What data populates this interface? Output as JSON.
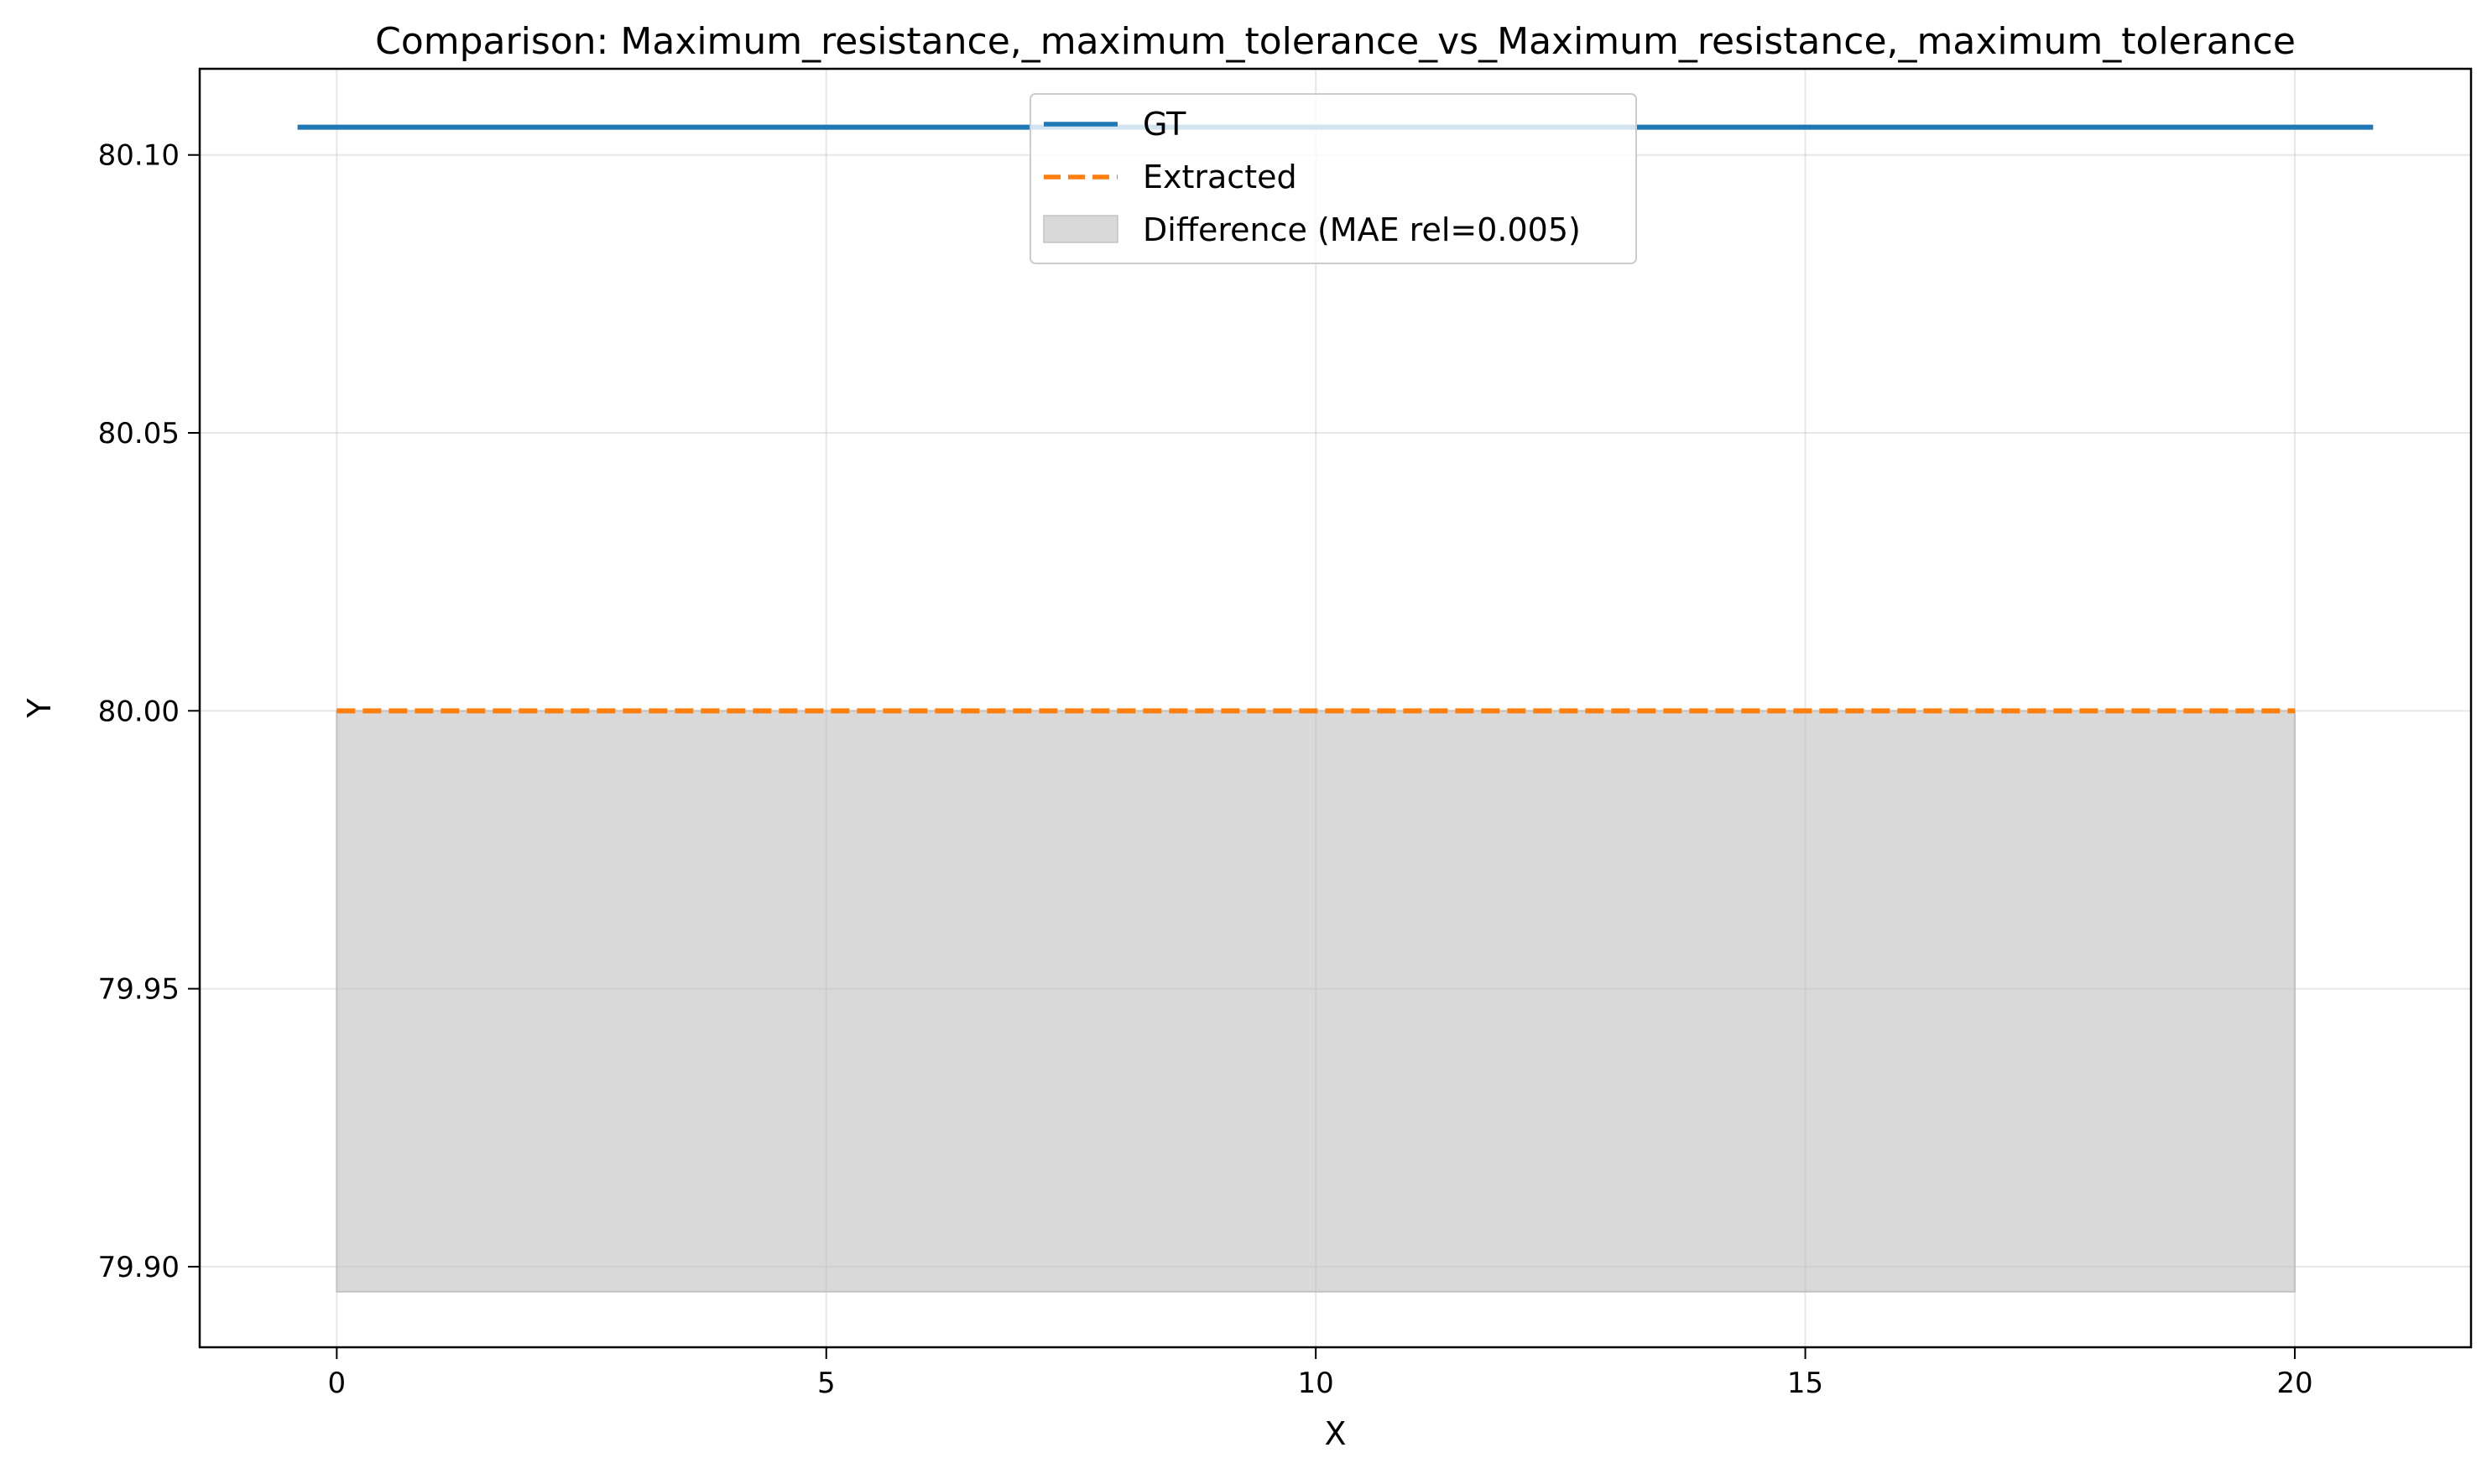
{
  "chart_data": {
    "type": "line",
    "title": "Comparison: Maximum_resistance,_maximum_tolerance_vs_Maximum_resistance,_maximum_tolerance",
    "xlabel": "X",
    "ylabel": "Y",
    "xlim": [
      -1.4,
      21.8
    ],
    "ylim": [
      79.8855,
      80.1155
    ],
    "x_ticks": [
      0,
      5,
      10,
      15,
      20
    ],
    "x_tick_labels": [
      "0",
      "5",
      "10",
      "15",
      "20"
    ],
    "y_ticks": [
      79.9,
      79.95,
      80.0,
      80.05,
      80.1
    ],
    "y_tick_labels": [
      "79.90",
      "79.95",
      "80.00",
      "80.05",
      "80.10"
    ],
    "grid": true,
    "legend_position": "top-center",
    "series": [
      {
        "name": "GT",
        "style": "solid",
        "color": "#1f77b4",
        "x": [
          -0.4,
          20.8
        ],
        "y": [
          80.105,
          80.105
        ]
      },
      {
        "name": "Extracted",
        "style": "dashed",
        "color": "#ff7f0e",
        "x": [
          0,
          20
        ],
        "y": [
          80.0,
          80.0
        ]
      }
    ],
    "fill": {
      "name": "Difference (MAE rel=0.005)",
      "color": "#bfbfbf",
      "x": [
        0,
        20
      ],
      "y_top": [
        80.0,
        80.0
      ],
      "y_bottom": [
        79.8955,
        79.8955
      ]
    }
  }
}
